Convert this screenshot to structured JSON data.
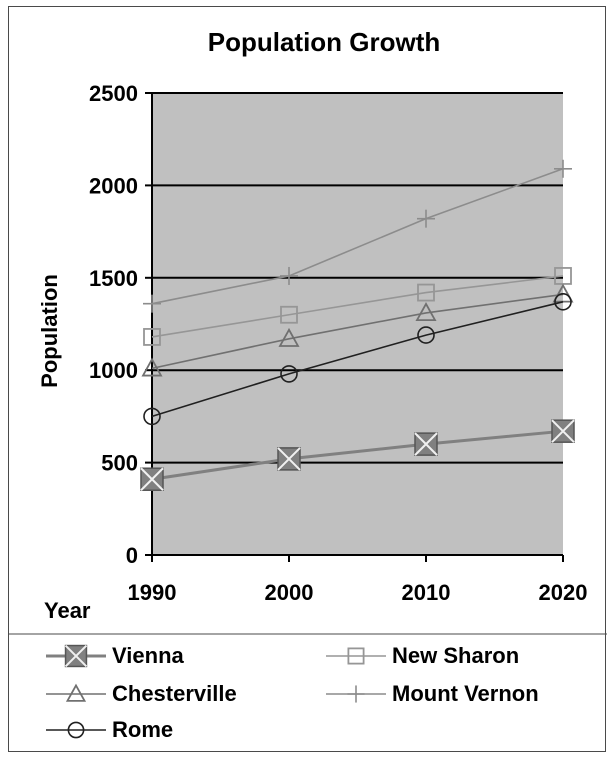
{
  "chart_data": {
    "type": "line",
    "title": "Population Growth",
    "xlabel": "Year",
    "ylabel": "Population",
    "x": [
      1990,
      2000,
      2010,
      2020
    ],
    "ylim": [
      0,
      2500
    ],
    "yticks": [
      0,
      500,
      1000,
      1500,
      2000,
      2500
    ],
    "grid": true,
    "plot_background": "#c0c0c0",
    "legend_position": "bottom",
    "series": [
      {
        "name": "Vienna",
        "values": [
          410,
          520,
          600,
          670
        ],
        "marker": "x-square",
        "color": "#808080"
      },
      {
        "name": "New Sharon",
        "values": [
          1180,
          1300,
          1420,
          1510
        ],
        "marker": "square",
        "color": "#969696"
      },
      {
        "name": "Chesterville",
        "values": [
          1010,
          1170,
          1310,
          1410
        ],
        "marker": "triangle",
        "color": "#707070"
      },
      {
        "name": "Mount Vernon",
        "values": [
          1360,
          1510,
          1820,
          2090
        ],
        "marker": "plus",
        "color": "#8c8c8c"
      },
      {
        "name": "Rome",
        "values": [
          750,
          980,
          1190,
          1370
        ],
        "marker": "circle",
        "color": "#202020"
      }
    ]
  }
}
